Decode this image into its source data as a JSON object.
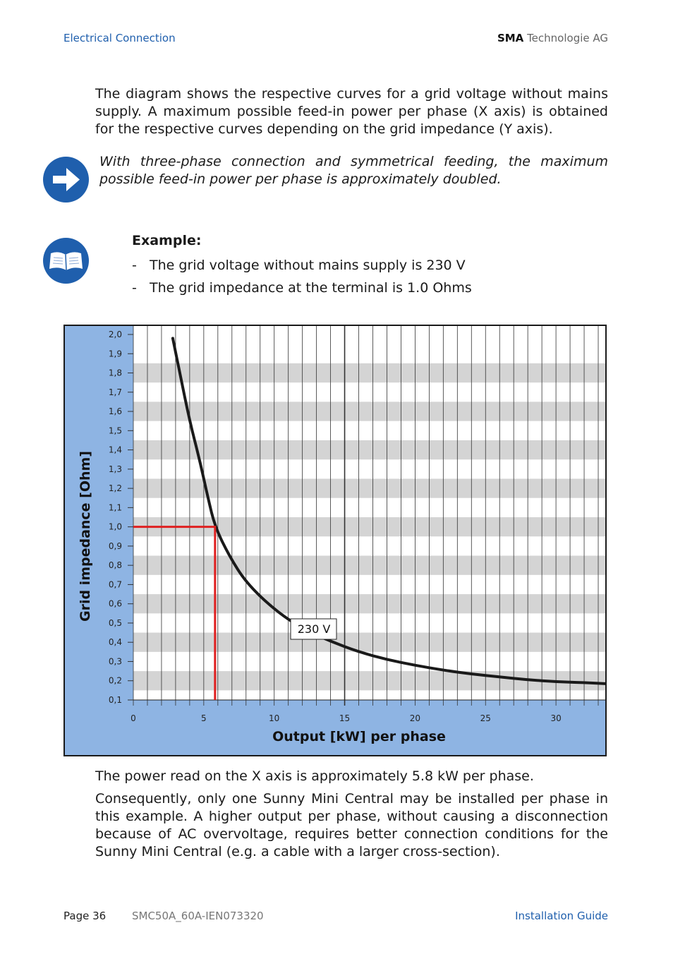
{
  "header": {
    "section": "Electrical Connection",
    "brand": "SMA",
    "company": "Technologie AG"
  },
  "intro": "The diagram shows the respective curves for a grid voltage without mains supply. A maximum possible feed-in power per phase (X axis) is obtained for the respective curves depending on the grid impedance (Y axis).",
  "note": "With three-phase connection and symmetrical feeding, the maximum possible feed-in power per phase is approximately doubled.",
  "example": {
    "title": "Example:",
    "items": [
      "The grid voltage without mains supply is 230 V",
      "The grid impedance at the terminal is 1.0 Ohms"
    ]
  },
  "chart_data": {
    "type": "line",
    "xlabel": "Output [kW] per phase",
    "ylabel": "Grid impedance [Ohm]",
    "xlim": [
      0,
      33.5
    ],
    "ylim": [
      0.1,
      2.0
    ],
    "x_ticks": [
      "0",
      "5",
      "10",
      "15",
      "20",
      "25",
      "30"
    ],
    "x_tick_values": [
      0,
      5,
      10,
      15,
      20,
      25,
      30
    ],
    "y_ticks": [
      "2,0",
      "1,9",
      "1,8",
      "1,7",
      "1,6",
      "1,5",
      "1,4",
      "1,3",
      "1,2",
      "1,1",
      "1,0",
      "0,9",
      "0,8",
      "0,7",
      "0,6",
      "0,5",
      "0,4",
      "0,3",
      "0,2",
      "0,1"
    ],
    "y_tick_values": [
      2.0,
      1.9,
      1.8,
      1.7,
      1.6,
      1.5,
      1.4,
      1.3,
      1.2,
      1.1,
      1.0,
      0.9,
      0.8,
      0.7,
      0.6,
      0.5,
      0.4,
      0.3,
      0.2,
      0.1
    ],
    "grid": true,
    "series": [
      {
        "name": "230 V",
        "color": "#1a1a1a",
        "x": [
          2.8,
          3.3,
          4.0,
          4.7,
          5.3,
          5.8,
          6.8,
          8.0,
          10.0,
          12.0,
          14.0,
          16.0,
          18.0,
          20.0,
          22.0,
          24.0,
          26.0,
          28.0,
          30.0,
          32.0,
          33.5
        ],
        "y": [
          1.98,
          1.8,
          1.55,
          1.35,
          1.15,
          1.0,
          0.85,
          0.71,
          0.57,
          0.47,
          0.405,
          0.35,
          0.31,
          0.28,
          0.255,
          0.235,
          0.22,
          0.205,
          0.195,
          0.19,
          0.185
        ]
      }
    ],
    "annotation": {
      "x": 5.8,
      "y": 1.0,
      "color": "#e02020"
    },
    "colors": {
      "panel": "#8eb4e3",
      "stripe": "#d4d4d4",
      "grid": "#333333"
    }
  },
  "result_text": "The power read on the X axis is approximately 5.8 kW per phase.",
  "conclusion": "Consequently, only one Sunny Mini Central may be installed per phase in this example. A higher output per phase, without causing a disconnection because of AC overvoltage, requires better connection conditions for the Sunny Mini Central (e.g. a cable with a larger cross-section).",
  "footer": {
    "page": "Page 36",
    "doc": "SMC50A_60A-IEN073320",
    "guide": "Installation Guide"
  }
}
